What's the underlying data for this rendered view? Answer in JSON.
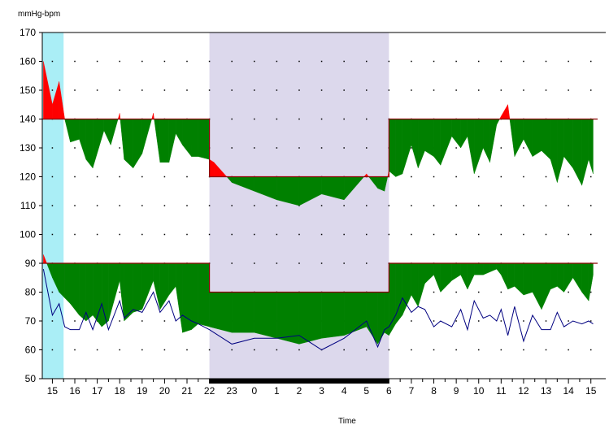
{
  "chart_data": {
    "type": "area",
    "ylabel": "mmHg-bpm",
    "xlabel": "Time",
    "ylim": [
      50,
      170
    ],
    "yticks": [
      50,
      60,
      70,
      80,
      90,
      100,
      110,
      120,
      130,
      140,
      150,
      160,
      170
    ],
    "xlim": [
      14.55,
      39.3
    ],
    "xticks": [
      {
        "label": "15",
        "x": 15
      },
      {
        "label": "16",
        "x": 16
      },
      {
        "label": "17",
        "x": 17
      },
      {
        "label": "18",
        "x": 18
      },
      {
        "label": "19",
        "x": 19
      },
      {
        "label": "20",
        "x": 20
      },
      {
        "label": "21",
        "x": 21
      },
      {
        "label": "22",
        "x": 22
      },
      {
        "label": "23",
        "x": 23
      },
      {
        "label": "0",
        "x": 24
      },
      {
        "label": "1",
        "x": 25
      },
      {
        "label": "2",
        "x": 26
      },
      {
        "label": "3",
        "x": 27
      },
      {
        "label": "4",
        "x": 28
      },
      {
        "label": "5",
        "x": 29
      },
      {
        "label": "6",
        "x": 30
      },
      {
        "label": "7",
        "x": 31
      },
      {
        "label": "8",
        "x": 32
      },
      {
        "label": "9",
        "x": 33
      },
      {
        "label": "10",
        "x": 34
      },
      {
        "label": "11",
        "x": 35
      },
      {
        "label": "12",
        "x": 36
      },
      {
        "label": "13",
        "x": 37
      },
      {
        "label": "14",
        "x": 38
      },
      {
        "label": "15",
        "x": 39
      }
    ],
    "grid": "dotted",
    "colors": {
      "under_threshold": "#008000",
      "over_threshold": "#ff0000",
      "threshold_line": "#8b0000",
      "heart_rate_line": "#000080",
      "night_band": "#dcd8ec",
      "start_band": "#aaeef6",
      "sleep_bar": "#000000"
    },
    "start_band": [
      14.55,
      15.5
    ],
    "night_band": [
      22,
      30
    ],
    "sleep_bar": [
      22,
      30
    ],
    "systolic_threshold": [
      {
        "from": 14.55,
        "to": 22,
        "value": 140
      },
      {
        "from": 22,
        "to": 30,
        "value": 120
      },
      {
        "from": 30,
        "to": 39.3,
        "value": 140
      }
    ],
    "diastolic_threshold": [
      {
        "from": 14.55,
        "to": 22,
        "value": 90
      },
      {
        "from": 22,
        "to": 30,
        "value": 80
      },
      {
        "from": 30,
        "to": 39.3,
        "value": 90
      }
    ],
    "systolic": {
      "x": [
        14.6,
        15.0,
        15.3,
        15.55,
        15.8,
        16.2,
        16.5,
        16.8,
        17.3,
        17.6,
        18.0,
        18.2,
        18.6,
        19.0,
        19.5,
        19.8,
        20.2,
        20.5,
        20.8,
        21.2,
        21.5,
        22.0,
        22.2,
        23.0,
        24.0,
        25.0,
        26.0,
        27.0,
        28.0,
        29.0,
        29.5,
        29.8,
        30.0,
        30.3,
        30.6,
        31.0,
        31.3,
        31.6,
        32.0,
        32.3,
        32.8,
        33.2,
        33.5,
        33.8,
        34.2,
        34.5,
        34.8,
        35.0,
        35.3,
        35.6,
        36.0,
        36.4,
        36.8,
        37.2,
        37.5,
        37.8,
        38.2,
        38.6,
        38.9,
        39.1
      ],
      "values": [
        160,
        145,
        153,
        140,
        132,
        133,
        126,
        123,
        136,
        131,
        142,
        126,
        123,
        128,
        142,
        125,
        125,
        135,
        131,
        127,
        127,
        126,
        125,
        118,
        115,
        112,
        110,
        114,
        112,
        121,
        116,
        115,
        122,
        120,
        121,
        131,
        123,
        129,
        127,
        124,
        134,
        130,
        134,
        121,
        130,
        125,
        138,
        141,
        145,
        127,
        133,
        127,
        129,
        126,
        118,
        127,
        123,
        117,
        126,
        121
      ]
    },
    "diastolic": {
      "x": [
        14.6,
        15.0,
        15.3,
        15.55,
        15.8,
        16.2,
        16.5,
        16.8,
        17.2,
        17.5,
        18.0,
        18.2,
        18.6,
        19.0,
        19.5,
        19.8,
        20.2,
        20.5,
        20.8,
        21.2,
        21.5,
        22.0,
        23.0,
        24.0,
        25.0,
        26.0,
        27.0,
        28.0,
        29.0,
        29.5,
        29.8,
        30.0,
        30.3,
        30.6,
        31.0,
        31.3,
        31.6,
        32.0,
        32.3,
        32.8,
        33.2,
        33.5,
        33.8,
        34.2,
        34.5,
        34.8,
        35.0,
        35.3,
        35.6,
        36.0,
        36.4,
        36.8,
        37.2,
        37.5,
        37.8,
        38.2,
        38.6,
        38.9,
        39.1
      ],
      "values": [
        93,
        85,
        80,
        78,
        76,
        72,
        70,
        72,
        68,
        70,
        84,
        70,
        73,
        74,
        84,
        74,
        79,
        82,
        66,
        67,
        69,
        68,
        66,
        66,
        64,
        62,
        64,
        65,
        68,
        62,
        66,
        65,
        69,
        72,
        79,
        75,
        83,
        86,
        80,
        84,
        86,
        81,
        86,
        86,
        87,
        88,
        86,
        81,
        82,
        79,
        80,
        74,
        81,
        82,
        80,
        85,
        80,
        77,
        86
      ]
    },
    "heart_rate": {
      "x": [
        14.6,
        15.0,
        15.3,
        15.55,
        15.8,
        16.2,
        16.5,
        16.8,
        17.2,
        17.5,
        18.0,
        18.2,
        18.6,
        19.0,
        19.5,
        19.8,
        20.2,
        20.5,
        20.8,
        21.2,
        21.5,
        22.0,
        23.0,
        24.0,
        25.0,
        26.0,
        27.0,
        28.0,
        29.0,
        29.5,
        29.8,
        30.0,
        30.3,
        30.6,
        31.0,
        31.3,
        31.6,
        32.0,
        32.3,
        32.8,
        33.2,
        33.5,
        33.8,
        34.2,
        34.5,
        34.8,
        35.0,
        35.3,
        35.6,
        36.0,
        36.4,
        36.8,
        37.2,
        37.5,
        37.8,
        38.2,
        38.6,
        38.9,
        39.1
      ],
      "values": [
        88,
        72,
        76,
        68,
        67,
        67,
        73,
        67,
        76,
        67,
        77,
        71,
        74,
        73,
        80,
        73,
        77,
        70,
        72,
        70,
        69,
        67,
        62,
        64,
        64,
        65,
        60,
        64,
        70,
        61,
        67,
        68,
        72,
        78,
        73,
        75,
        74,
        68,
        70,
        68,
        74,
        67,
        77,
        71,
        72,
        70,
        74,
        65,
        75,
        63,
        72,
        67,
        67,
        73,
        68,
        70,
        69,
        70,
        69
      ]
    }
  }
}
